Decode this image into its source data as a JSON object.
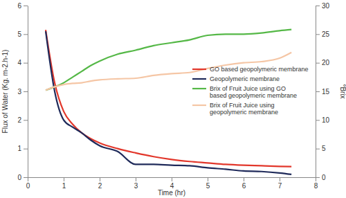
{
  "chart_data": {
    "type": "line",
    "x": [
      0.5,
      0.75,
      1,
      1.25,
      1.5,
      1.75,
      2,
      2.5,
      3,
      3.5,
      4,
      4.5,
      5,
      5.5,
      6,
      6.5,
      7,
      7.33
    ],
    "xlim": [
      0,
      8
    ],
    "xticks": [
      0,
      1,
      2,
      3,
      4,
      5,
      6,
      7,
      8
    ],
    "ylim": [
      0,
      6
    ],
    "yticks": [
      0,
      1,
      2,
      3,
      4,
      5,
      6
    ],
    "y2lim": [
      0,
      30
    ],
    "y2ticks": [
      0,
      5,
      10,
      15,
      20,
      25,
      30
    ],
    "x_label": "Time (hr)",
    "y_label": "Flux of Water (Kg. m-2.h-1)",
    "y2_label": "°Brix",
    "legend": "right",
    "series": [
      {
        "name": "GO based geopolymeric membrane",
        "color": "#e2372b",
        "axis": "y",
        "values": [
          5.15,
          3.3,
          2.3,
          1.85,
          1.55,
          1.35,
          1.2,
          1.0,
          0.85,
          0.72,
          0.62,
          0.55,
          0.5,
          0.45,
          0.42,
          0.4,
          0.38,
          0.37
        ]
      },
      {
        "name": "Geopolymeric membrane",
        "color": "#1f2a5a",
        "axis": "y",
        "values": [
          5.1,
          3.0,
          2.0,
          1.75,
          1.55,
          1.3,
          1.1,
          0.9,
          0.45,
          0.45,
          0.42,
          0.4,
          0.33,
          0.28,
          0.22,
          0.2,
          0.15,
          0.1
        ]
      },
      {
        "name": "Brix of Fruit Juice using GO based geopolymeric membrane",
        "color": "#55b847",
        "axis": "y2",
        "values": [
          15.2,
          15.8,
          16.5,
          17.5,
          18.5,
          19.5,
          20.3,
          21.5,
          22.2,
          23.0,
          23.5,
          24.0,
          24.8,
          25.0,
          25.0,
          25.2,
          25.6,
          25.8
        ]
      },
      {
        "name": "Brix of Fruit Juice using geopolymeric membrane",
        "color": "#f5c6a5",
        "axis": "y2",
        "values": [
          15.2,
          15.8,
          16.2,
          16.4,
          16.5,
          16.8,
          17.0,
          17.2,
          17.3,
          17.8,
          18.1,
          18.3,
          19.0,
          19.6,
          20.0,
          20.2,
          20.8,
          21.8
        ]
      }
    ]
  }
}
